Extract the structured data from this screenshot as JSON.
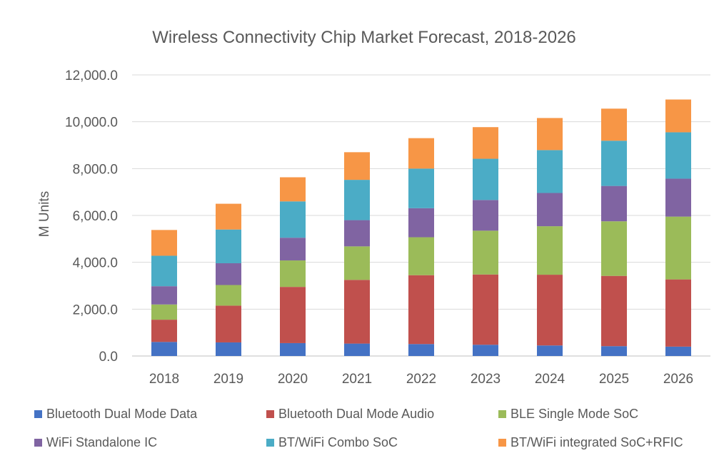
{
  "chart_data": {
    "type": "bar",
    "stacked": true,
    "title": "Wireless Connectivity Chip Market Forecast, 2018-2026",
    "xlabel": "",
    "ylabel": "M Units",
    "ylim": [
      0,
      12000
    ],
    "yticks": [
      0,
      2000,
      4000,
      6000,
      8000,
      10000,
      12000
    ],
    "ytick_labels": [
      "0.0",
      "2,000.0",
      "4,000.0",
      "6,000.0",
      "8,000.0",
      "10,000.0",
      "12,000.0"
    ],
    "grid": "horizontal",
    "legend_position": "bottom",
    "categories": [
      "2018",
      "2019",
      "2020",
      "2021",
      "2022",
      "2023",
      "2024",
      "2025",
      "2026"
    ],
    "series": [
      {
        "name": "Bluetooth Dual Mode Data",
        "color": "#4472c4",
        "values": [
          600,
          580,
          550,
          530,
          510,
          480,
          450,
          420,
          400
        ]
      },
      {
        "name": "Bluetooth Dual Mode Audio",
        "color": "#c0504d",
        "values": [
          950,
          1570,
          2400,
          2720,
          2940,
          3000,
          3020,
          3000,
          2870
        ]
      },
      {
        "name": "BLE Single Mode SoC",
        "color": "#9bbb59",
        "values": [
          650,
          880,
          1130,
          1430,
          1620,
          1870,
          2070,
          2330,
          2680
        ]
      },
      {
        "name": "WiFi Standalone IC",
        "color": "#8064a2",
        "values": [
          780,
          930,
          970,
          1120,
          1240,
          1310,
          1420,
          1510,
          1620
        ]
      },
      {
        "name": "BT/WiFi Combo SoC",
        "color": "#4bacc6",
        "values": [
          1300,
          1440,
          1550,
          1720,
          1690,
          1760,
          1830,
          1930,
          1980
        ]
      },
      {
        "name": "BT/WiFi integrated SoC+RFIC",
        "color": "#f79646",
        "values": [
          1100,
          1100,
          1030,
          1180,
          1300,
          1350,
          1370,
          1370,
          1400
        ]
      }
    ]
  }
}
